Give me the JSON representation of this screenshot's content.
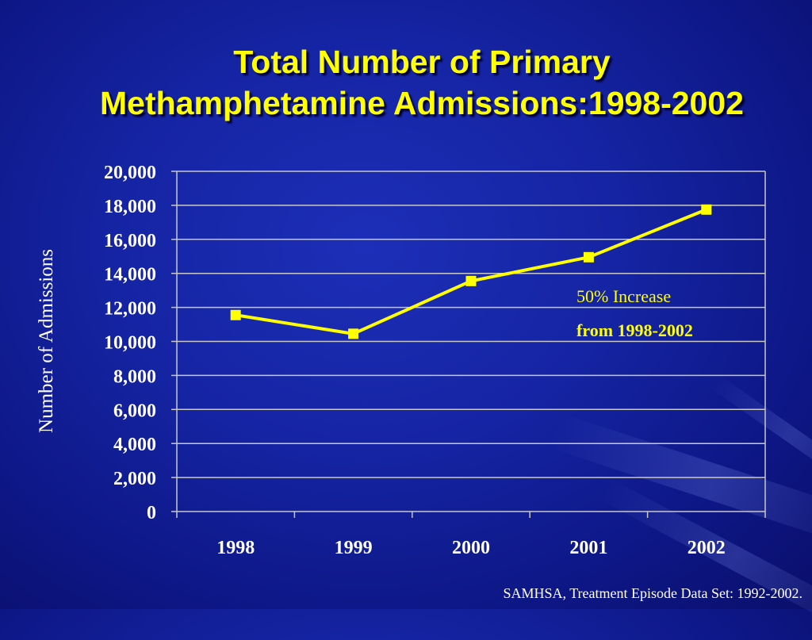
{
  "title": {
    "line1": "Total Number of Primary",
    "line2": "Methamphetamine Admissions:1998-2002"
  },
  "source": "SAMHSA, Treatment Episode Data Set: 1992-2002.",
  "annotation": {
    "line1": "50% Increase",
    "line2": "from 1998-2002"
  },
  "colors": {
    "title": "#ffff00",
    "line": "#ffff00",
    "marker": "#ffff00",
    "grid": "#c8c8c8",
    "text": "#ffffff"
  },
  "chart_data": {
    "type": "line",
    "categories": [
      "1998",
      "1999",
      "2000",
      "2001",
      "2002"
    ],
    "series": [
      {
        "values": [
          11550,
          10450,
          13550,
          14950,
          17750
        ]
      }
    ],
    "ylabel": "Number of Admissions",
    "xlabel": "",
    "ylim": [
      0,
      20000
    ],
    "yticks": [
      0,
      2000,
      4000,
      6000,
      8000,
      10000,
      12000,
      14000,
      16000,
      18000,
      20000
    ],
    "ytick_labels": [
      "0",
      "2,000",
      "4,000",
      "6,000",
      "8,000",
      "10,000",
      "12,000",
      "14,000",
      "16,000",
      "18,000",
      "20,000"
    ],
    "grid": true,
    "legend": "none"
  }
}
